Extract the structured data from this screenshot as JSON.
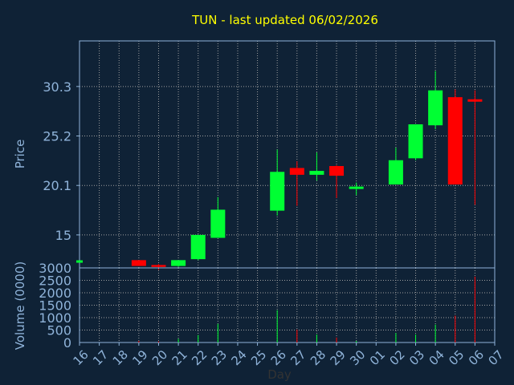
{
  "chart_data": {
    "type": "candlestick",
    "title": "TUN - last updated 06/02/2026",
    "xlabel": "Day",
    "ylabel_price": "Price",
    "ylabel_volume": "Volume (0000)",
    "days": [
      "16",
      "17",
      "18",
      "19",
      "20",
      "21",
      "22",
      "23",
      "24",
      "25",
      "26",
      "27",
      "28",
      "29",
      "30",
      "01",
      "02",
      "03",
      "04",
      "05",
      "06",
      "07"
    ],
    "price_ticks": [
      "15",
      "20.1",
      "25.2",
      "30.3"
    ],
    "price_ylim": [
      11.6,
      35.0
    ],
    "volume_ticks": [
      "0",
      "500",
      "1000",
      "1500",
      "2000",
      "2500",
      "3000"
    ],
    "volume_ylim": [
      0,
      3000
    ],
    "grid": true,
    "colors": {
      "background": "#0f2236",
      "text": "#8fb3d9",
      "title": "#ffff00",
      "up": "#00ff33",
      "down": "#ff0000",
      "grid": "#a0a0a0",
      "axis": "#8fb3d9"
    },
    "candles": [
      {
        "day": "16",
        "open": 12.3,
        "close": 12.3,
        "high": 12.3,
        "low": 12.3,
        "volume": 0
      },
      {
        "day": "19",
        "open": 12.4,
        "close": 11.8,
        "high": 12.4,
        "low": 11.8,
        "volume": 60
      },
      {
        "day": "20",
        "open": 11.9,
        "close": 11.7,
        "high": 12.0,
        "low": 11.4,
        "volume": 40
      },
      {
        "day": "21",
        "open": 11.8,
        "close": 12.4,
        "high": 12.4,
        "low": 11.7,
        "volume": 150
      },
      {
        "day": "22",
        "open": 12.5,
        "close": 15.0,
        "high": 15.0,
        "low": 12.4,
        "volume": 300
      },
      {
        "day": "23",
        "open": 14.7,
        "close": 17.6,
        "high": 18.9,
        "low": 14.7,
        "volume": 750
      },
      {
        "day": "26",
        "open": 17.5,
        "close": 21.5,
        "high": 23.8,
        "low": 17.0,
        "volume": 1300
      },
      {
        "day": "27",
        "open": 21.9,
        "close": 21.2,
        "high": 22.6,
        "low": 18.0,
        "volume": 520
      },
      {
        "day": "28",
        "open": 21.2,
        "close": 21.6,
        "high": 23.5,
        "low": 20.6,
        "volume": 320
      },
      {
        "day": "29",
        "open": 22.1,
        "close": 21.1,
        "high": 22.2,
        "low": 18.8,
        "volume": 200
      },
      {
        "day": "30",
        "open": 19.9,
        "close": 19.9,
        "high": 20.4,
        "low": 19.1,
        "volume": 60
      },
      {
        "day": "02",
        "open": 20.2,
        "close": 22.7,
        "high": 24.0,
        "low": 20.2,
        "volume": 380
      },
      {
        "day": "03",
        "open": 22.9,
        "close": 26.4,
        "high": 26.4,
        "low": 22.7,
        "volume": 320
      },
      {
        "day": "04",
        "open": 26.3,
        "close": 29.9,
        "high": 31.9,
        "low": 25.9,
        "volume": 720
      },
      {
        "day": "05",
        "open": 29.2,
        "close": 20.2,
        "high": 30.0,
        "low": 20.2,
        "volume": 1080
      },
      {
        "day": "06",
        "open": 28.9,
        "close": 28.8,
        "high": 29.9,
        "low": 18.1,
        "volume": 2650
      }
    ]
  }
}
